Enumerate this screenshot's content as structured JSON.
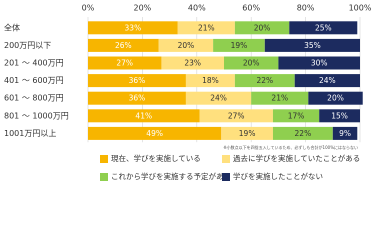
{
  "chart_data": {
    "type": "stacked-bar-horizontal",
    "categories": [
      "全体",
      "200万円以下",
      "201 ～ 400万円",
      "401 ～ 600万円",
      "601 ～ 800万円",
      "801 ～ 1000万円",
      "1001万円以上"
    ],
    "series": [
      {
        "name": "現在、学びを実施している",
        "color": "#f7b500",
        "values": [
          33,
          26,
          27,
          36,
          36,
          41,
          49
        ],
        "value_labels": [
          "33%",
          "26%",
          "27%",
          "36%",
          "36%",
          "41%",
          "49%"
        ]
      },
      {
        "name": "過去に学びを実施していたことがある",
        "color": "#ffe07e",
        "values": [
          21,
          20,
          23,
          18,
          24,
          27,
          19
        ],
        "value_labels": [
          "21%",
          "20%",
          "23%",
          "18%",
          "24%",
          "27%",
          "19%"
        ]
      },
      {
        "name": "これから学びを実施する予定がある",
        "color": "#8fcf4f",
        "values": [
          20,
          19,
          20,
          22,
          21,
          17,
          22
        ],
        "value_labels": [
          "20%",
          "19%",
          "20%",
          "22%",
          "21%",
          "17%",
          "22%"
        ]
      },
      {
        "name": "学びを実施したことがない",
        "color": "#1c2b5f",
        "values": [
          25,
          35,
          30,
          24,
          20,
          15,
          9
        ],
        "value_labels": [
          "25%",
          "35%",
          "30%",
          "24%",
          "20%",
          "15%",
          "9%"
        ]
      }
    ],
    "xlim": [
      0,
      100
    ],
    "xticks": [
      {
        "value": 0,
        "label": "0%"
      },
      {
        "value": 20,
        "label": "20%"
      },
      {
        "value": 40,
        "label": "40%"
      },
      {
        "value": 60,
        "label": "60%"
      },
      {
        "value": 80,
        "label": "80%"
      },
      {
        "value": 100,
        "label": "100%"
      }
    ],
    "grid": true,
    "note": "※小数点以下を四捨五入しているため、必ずしも合計が100%にはならない"
  }
}
